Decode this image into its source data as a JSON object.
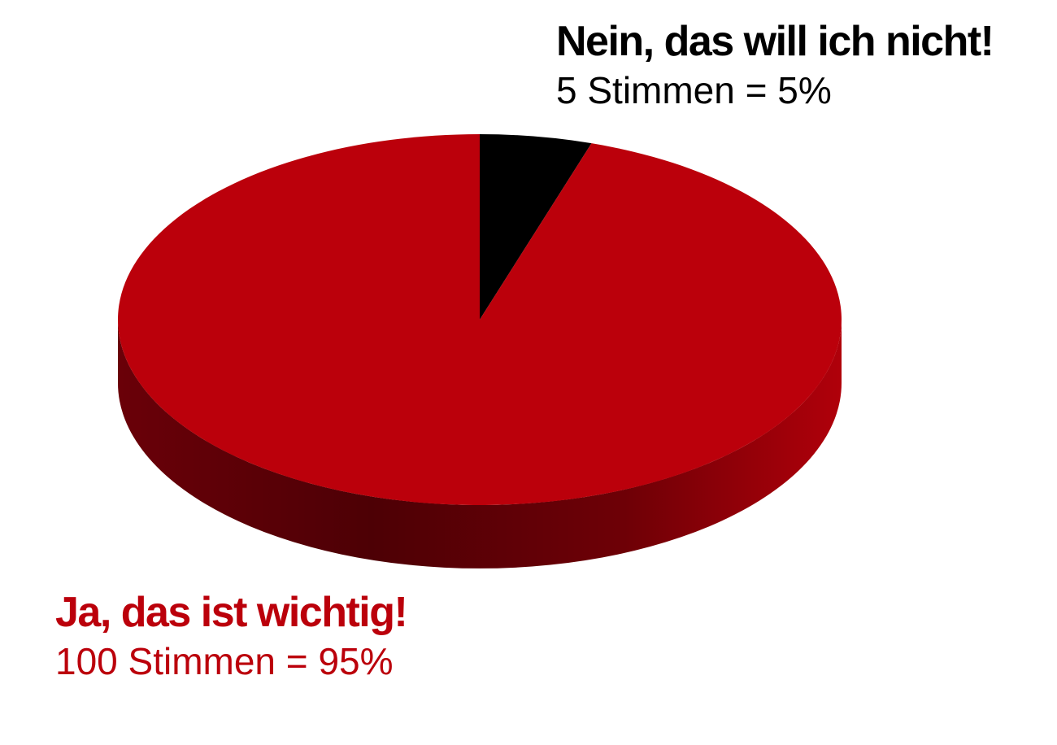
{
  "chart_data": {
    "type": "pie",
    "style": "3d",
    "colors": {
      "yes": "#bb000b",
      "no": "#000000"
    },
    "slices": [
      {
        "key": "no",
        "label": "Nein, das will ich nicht!",
        "votes_text": "5 Stimmen = 5%",
        "votes": 5,
        "percent": 5,
        "color": "#000000",
        "label_color": "#000000"
      },
      {
        "key": "yes",
        "label": "Ja, das ist wichtig!",
        "votes_text": "100 Stimmen = 95%",
        "votes": 100,
        "percent": 95,
        "color": "#bb000b",
        "label_color": "#bb000b"
      }
    ]
  }
}
